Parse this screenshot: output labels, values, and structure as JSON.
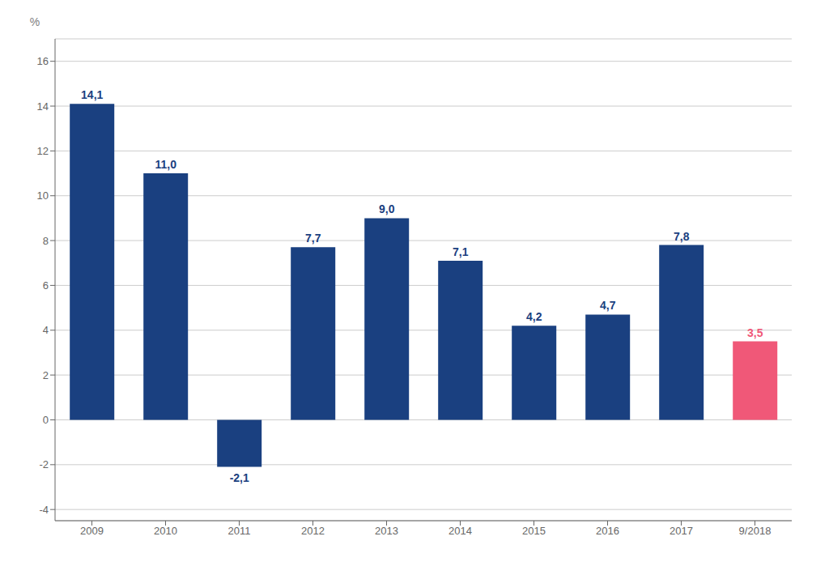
{
  "chart_data": {
    "type": "bar",
    "categories": [
      "2009",
      "2010",
      "2011",
      "2012",
      "2013",
      "2014",
      "2015",
      "2016",
      "2017",
      "9/2018"
    ],
    "values": [
      14.1,
      11.0,
      -2.1,
      7.7,
      9.0,
      7.1,
      4.2,
      4.7,
      7.8,
      3.5
    ],
    "value_labels": [
      "14,1",
      "11,0",
      "-2,1",
      "7,7",
      "9,0",
      "7,1",
      "4,2",
      "4,7",
      "7,8",
      "3,5"
    ],
    "colors": [
      "#1a4080",
      "#1a4080",
      "#1a4080",
      "#1a4080",
      "#1a4080",
      "#1a4080",
      "#1a4080",
      "#1a4080",
      "#1a4080",
      "#f05878"
    ],
    "ylabel": "%",
    "ylim": [
      -4.5,
      17
    ],
    "yticks": [
      -4,
      -2,
      0,
      2,
      4,
      6,
      8,
      10,
      12,
      14,
      16
    ],
    "grid": true,
    "data_labels": true
  }
}
